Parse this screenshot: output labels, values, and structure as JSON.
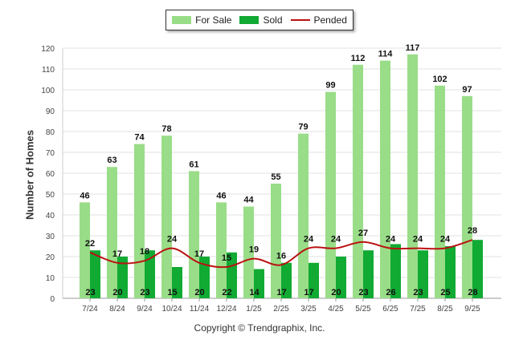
{
  "chart_data": {
    "type": "bar",
    "title": "",
    "xlabel": "",
    "ylabel": "Number of Homes",
    "ylim": [
      0,
      120
    ],
    "yticks": [
      0,
      10,
      20,
      30,
      40,
      50,
      60,
      70,
      80,
      90,
      100,
      110,
      120
    ],
    "categories": [
      "7/24",
      "8/24",
      "9/24",
      "10/24",
      "11/24",
      "12/24",
      "1/25",
      "2/25",
      "3/25",
      "4/25",
      "5/25",
      "6/25",
      "7/25",
      "8/25",
      "9/25"
    ],
    "series": [
      {
        "name": "For Sale",
        "type": "bar",
        "color": "#99dd88",
        "values": [
          46,
          63,
          74,
          78,
          61,
          46,
          44,
          55,
          79,
          99,
          112,
          114,
          117,
          102,
          97
        ]
      },
      {
        "name": "Sold",
        "type": "bar",
        "color": "#11aa33",
        "values": [
          23,
          20,
          23,
          15,
          20,
          22,
          14,
          17,
          17,
          20,
          23,
          26,
          23,
          25,
          28
        ]
      },
      {
        "name": "Pended",
        "type": "line",
        "color": "#bb1111",
        "values": [
          22,
          17,
          18,
          24,
          17,
          15,
          19,
          16,
          24,
          24,
          27,
          24,
          24,
          24,
          28
        ]
      }
    ],
    "legend_position": "top-center"
  },
  "footer": {
    "copyright": "Copyright © Trendgraphix, Inc."
  }
}
